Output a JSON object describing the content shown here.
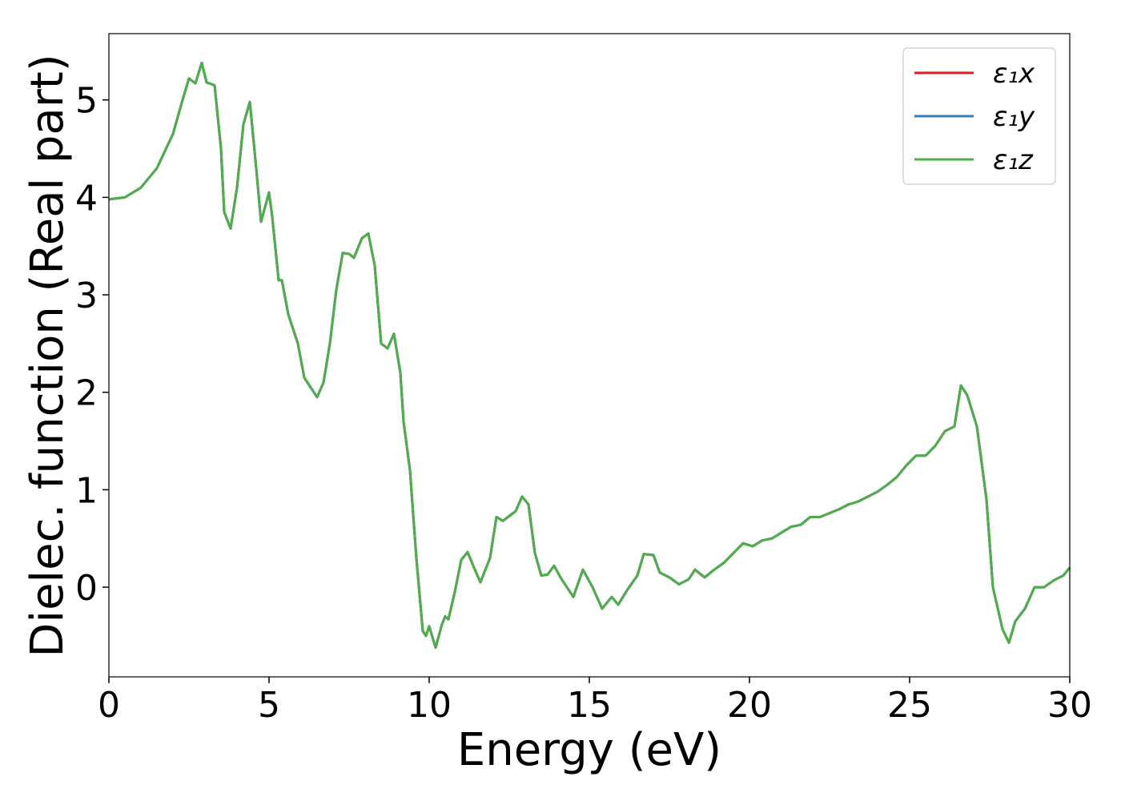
{
  "chart_data": {
    "type": "line",
    "xlabel": "Energy (eV)",
    "ylabel": "Dielec. function (Real part)",
    "xlim": [
      0,
      30
    ],
    "ylim": [
      -0.92,
      5.68
    ],
    "xticks": [
      0,
      5,
      10,
      15,
      20,
      25,
      30
    ],
    "yticks": [
      0,
      1,
      2,
      3,
      4,
      5
    ],
    "legend": "upper right",
    "grid": false,
    "x": [
      0,
      0.5,
      1.0,
      1.5,
      2.0,
      2.3,
      2.5,
      2.7,
      2.9,
      3.05,
      3.3,
      3.5,
      3.6,
      3.8,
      4.0,
      4.2,
      4.4,
      4.6,
      4.75,
      5.0,
      5.1,
      5.3,
      5.4,
      5.6,
      5.9,
      6.1,
      6.3,
      6.5,
      6.7,
      6.9,
      7.1,
      7.3,
      7.5,
      7.65,
      7.9,
      8.1,
      8.3,
      8.5,
      8.7,
      8.9,
      9.1,
      9.2,
      9.4,
      9.6,
      9.8,
      9.9,
      10.0,
      10.2,
      10.4,
      10.5,
      10.6,
      10.8,
      11.0,
      11.2,
      11.4,
      11.6,
      11.9,
      12.1,
      12.3,
      12.5,
      12.7,
      12.9,
      13.1,
      13.3,
      13.5,
      13.7,
      13.9,
      14.1,
      14.3,
      14.5,
      14.8,
      15.1,
      15.4,
      15.7,
      15.9,
      16.2,
      16.5,
      16.7,
      17.0,
      17.2,
      17.5,
      17.8,
      18.1,
      18.3,
      18.6,
      18.9,
      19.2,
      19.5,
      19.8,
      20.1,
      20.4,
      20.7,
      21.0,
      21.3,
      21.6,
      21.9,
      22.2,
      22.5,
      22.8,
      23.1,
      23.4,
      23.7,
      24.0,
      24.3,
      24.6,
      24.9,
      25.2,
      25.5,
      25.8,
      26.1,
      26.4,
      26.6,
      26.8,
      27.1,
      27.4,
      27.6,
      27.9,
      28.1,
      28.3,
      28.6,
      28.9,
      29.2,
      29.5,
      29.8,
      30.0
    ],
    "series": [
      {
        "name": "ε₁x",
        "color": "#e41a1c",
        "values": [
          3.98,
          4.0,
          4.1,
          4.3,
          4.65,
          5.0,
          5.22,
          5.17,
          5.38,
          5.18,
          5.15,
          4.5,
          3.85,
          3.68,
          4.1,
          4.75,
          4.98,
          4.3,
          3.75,
          4.05,
          3.8,
          3.15,
          3.15,
          2.8,
          2.5,
          2.15,
          2.05,
          1.95,
          2.1,
          2.5,
          3.05,
          3.43,
          3.42,
          3.38,
          3.58,
          3.63,
          3.3,
          2.5,
          2.45,
          2.6,
          2.2,
          1.7,
          1.2,
          0.3,
          -0.45,
          -0.5,
          -0.4,
          -0.62,
          -0.38,
          -0.3,
          -0.33,
          -0.05,
          0.28,
          0.36,
          0.2,
          0.05,
          0.3,
          0.72,
          0.68,
          0.73,
          0.78,
          0.93,
          0.85,
          0.35,
          0.12,
          0.13,
          0.22,
          0.1,
          0.0,
          -0.1,
          0.18,
          0.0,
          -0.22,
          -0.1,
          -0.18,
          -0.02,
          0.12,
          0.34,
          0.33,
          0.15,
          0.1,
          0.03,
          0.08,
          0.18,
          0.1,
          0.18,
          0.25,
          0.35,
          0.45,
          0.42,
          0.48,
          0.5,
          0.56,
          0.62,
          0.64,
          0.72,
          0.72,
          0.76,
          0.8,
          0.85,
          0.88,
          0.93,
          0.98,
          1.05,
          1.13,
          1.25,
          1.35,
          1.35,
          1.45,
          1.6,
          1.65,
          2.07,
          1.97,
          1.65,
          0.9,
          0.0,
          -0.43,
          -0.57,
          -0.35,
          -0.22,
          0.0,
          0.0,
          0.07,
          0.12,
          0.2
        ]
      },
      {
        "name": "ε₁y",
        "color": "#377eb8",
        "values": [
          3.98,
          4.0,
          4.1,
          4.3,
          4.65,
          5.0,
          5.22,
          5.17,
          5.38,
          5.18,
          5.15,
          4.5,
          3.85,
          3.68,
          4.1,
          4.75,
          4.98,
          4.3,
          3.75,
          4.05,
          3.8,
          3.15,
          3.15,
          2.8,
          2.5,
          2.15,
          2.05,
          1.95,
          2.1,
          2.5,
          3.05,
          3.43,
          3.42,
          3.38,
          3.58,
          3.63,
          3.3,
          2.5,
          2.45,
          2.6,
          2.2,
          1.7,
          1.2,
          0.3,
          -0.45,
          -0.5,
          -0.4,
          -0.62,
          -0.38,
          -0.3,
          -0.33,
          -0.05,
          0.28,
          0.36,
          0.2,
          0.05,
          0.3,
          0.72,
          0.68,
          0.73,
          0.78,
          0.93,
          0.85,
          0.35,
          0.12,
          0.13,
          0.22,
          0.1,
          0.0,
          -0.1,
          0.18,
          0.0,
          -0.22,
          -0.1,
          -0.18,
          -0.02,
          0.12,
          0.34,
          0.33,
          0.15,
          0.1,
          0.03,
          0.08,
          0.18,
          0.1,
          0.18,
          0.25,
          0.35,
          0.45,
          0.42,
          0.48,
          0.5,
          0.56,
          0.62,
          0.64,
          0.72,
          0.72,
          0.76,
          0.8,
          0.85,
          0.88,
          0.93,
          0.98,
          1.05,
          1.13,
          1.25,
          1.35,
          1.35,
          1.45,
          1.6,
          1.65,
          2.07,
          1.97,
          1.65,
          0.9,
          0.0,
          -0.43,
          -0.57,
          -0.35,
          -0.22,
          0.0,
          0.0,
          0.07,
          0.12,
          0.2
        ]
      },
      {
        "name": "ε₁z",
        "color": "#4daf4a",
        "values": [
          3.98,
          4.0,
          4.1,
          4.3,
          4.65,
          5.0,
          5.22,
          5.17,
          5.38,
          5.18,
          5.15,
          4.5,
          3.85,
          3.68,
          4.1,
          4.75,
          4.98,
          4.3,
          3.75,
          4.05,
          3.8,
          3.15,
          3.15,
          2.8,
          2.5,
          2.15,
          2.05,
          1.95,
          2.1,
          2.5,
          3.05,
          3.43,
          3.42,
          3.38,
          3.58,
          3.63,
          3.3,
          2.5,
          2.45,
          2.6,
          2.2,
          1.7,
          1.2,
          0.3,
          -0.45,
          -0.5,
          -0.4,
          -0.62,
          -0.38,
          -0.3,
          -0.33,
          -0.05,
          0.28,
          0.36,
          0.2,
          0.05,
          0.3,
          0.72,
          0.68,
          0.73,
          0.78,
          0.93,
          0.85,
          0.35,
          0.12,
          0.13,
          0.22,
          0.1,
          0.0,
          -0.1,
          0.18,
          0.0,
          -0.22,
          -0.1,
          -0.18,
          -0.02,
          0.12,
          0.34,
          0.33,
          0.15,
          0.1,
          0.03,
          0.08,
          0.18,
          0.1,
          0.18,
          0.25,
          0.35,
          0.45,
          0.42,
          0.48,
          0.5,
          0.56,
          0.62,
          0.64,
          0.72,
          0.72,
          0.76,
          0.8,
          0.85,
          0.88,
          0.93,
          0.98,
          1.05,
          1.13,
          1.25,
          1.35,
          1.35,
          1.45,
          1.6,
          1.65,
          2.07,
          1.97,
          1.65,
          0.9,
          0.0,
          -0.43,
          -0.57,
          -0.35,
          -0.22,
          0.0,
          0.0,
          0.07,
          0.12,
          0.2
        ]
      }
    ]
  }
}
